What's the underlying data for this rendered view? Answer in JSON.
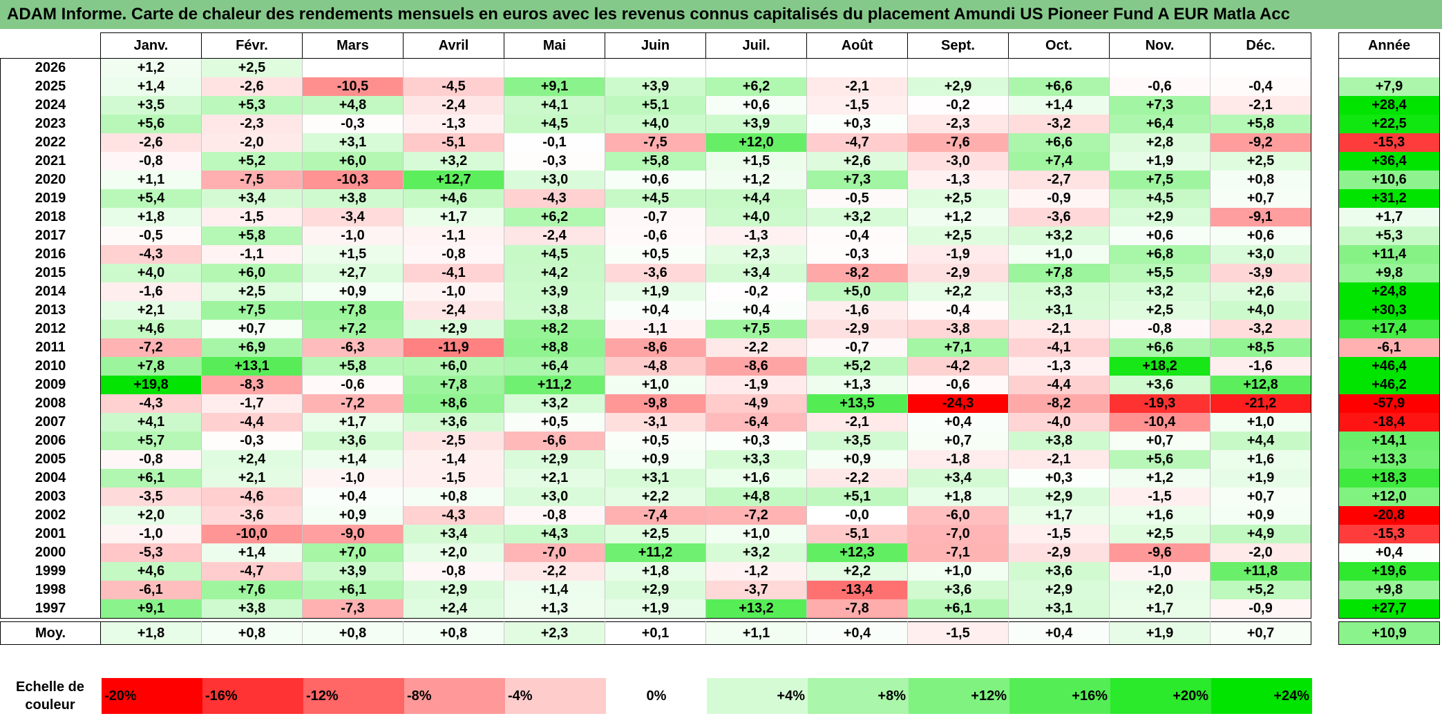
{
  "title": "ADAM Informe. Carte de chaleur des rendements mensuels en euros avec les revenus connus capitalisés du placement Amundi US Pioneer Fund A EUR Matla Acc",
  "chart_data": {
    "type": "heatmap",
    "months": [
      "Janv.",
      "Févr.",
      "Mars",
      "Avril",
      "Mai",
      "Juin",
      "Juil.",
      "Août",
      "Sept.",
      "Oct.",
      "Nov.",
      "Déc."
    ],
    "year_header": "Année",
    "rows": [
      {
        "year": "2026",
        "values": [
          "+1,2",
          "+2,5",
          "",
          "",
          "",
          "",
          "",
          "",
          "",
          "",
          "",
          ""
        ],
        "annual": ""
      },
      {
        "year": "2025",
        "values": [
          "+1,4",
          "-2,6",
          "-10,5",
          "-4,5",
          "+9,1",
          "+3,9",
          "+6,2",
          "-2,1",
          "+2,9",
          "+6,6",
          "-0,6",
          "-0,4"
        ],
        "annual": "+7,9"
      },
      {
        "year": "2024",
        "values": [
          "+3,5",
          "+5,3",
          "+4,8",
          "-2,4",
          "+4,1",
          "+5,1",
          "+0,6",
          "-1,5",
          "-0,2",
          "+1,4",
          "+7,3",
          "-2,1"
        ],
        "annual": "+28,4"
      },
      {
        "year": "2023",
        "values": [
          "+5,6",
          "-2,3",
          "-0,3",
          "-1,3",
          "+4,5",
          "+4,0",
          "+3,9",
          "+0,3",
          "-2,3",
          "-3,2",
          "+6,4",
          "+5,8"
        ],
        "annual": "+22,5"
      },
      {
        "year": "2022",
        "values": [
          "-2,6",
          "-2,0",
          "+3,1",
          "-5,1",
          "-0,1",
          "-7,5",
          "+12,0",
          "-4,7",
          "-7,6",
          "+6,6",
          "+2,8",
          "-9,2"
        ],
        "annual": "-15,3"
      },
      {
        "year": "2021",
        "values": [
          "-0,8",
          "+5,2",
          "+6,0",
          "+3,2",
          "-0,3",
          "+5,8",
          "+1,5",
          "+2,6",
          "-3,0",
          "+7,4",
          "+1,9",
          "+2,5"
        ],
        "annual": "+36,4"
      },
      {
        "year": "2020",
        "values": [
          "+1,1",
          "-7,5",
          "-10,3",
          "+12,7",
          "+3,0",
          "+0,6",
          "+1,2",
          "+7,3",
          "-1,3",
          "-2,7",
          "+7,5",
          "+0,8"
        ],
        "annual": "+10,6"
      },
      {
        "year": "2019",
        "values": [
          "+5,4",
          "+3,4",
          "+3,8",
          "+4,6",
          "-4,3",
          "+4,5",
          "+4,4",
          "-0,5",
          "+2,5",
          "-0,9",
          "+4,5",
          "+0,7"
        ],
        "annual": "+31,2"
      },
      {
        "year": "2018",
        "values": [
          "+1,8",
          "-1,5",
          "-3,4",
          "+1,7",
          "+6,2",
          "-0,7",
          "+4,0",
          "+3,2",
          "+1,2",
          "-3,6",
          "+2,9",
          "-9,1"
        ],
        "annual": "+1,7"
      },
      {
        "year": "2017",
        "values": [
          "-0,5",
          "+5,8",
          "-1,0",
          "-1,1",
          "-2,4",
          "-0,6",
          "-1,3",
          "-0,4",
          "+2,5",
          "+3,2",
          "+0,6",
          "+0,6"
        ],
        "annual": "+5,3"
      },
      {
        "year": "2016",
        "values": [
          "-4,3",
          "-1,1",
          "+1,5",
          "-0,8",
          "+4,5",
          "+0,5",
          "+2,3",
          "-0,3",
          "-1,9",
          "+1,0",
          "+6,8",
          "+3,0"
        ],
        "annual": "+11,4"
      },
      {
        "year": "2015",
        "values": [
          "+4,0",
          "+6,0",
          "+2,7",
          "-4,1",
          "+4,2",
          "-3,6",
          "+3,4",
          "-8,2",
          "-2,9",
          "+7,8",
          "+5,5",
          "-3,9"
        ],
        "annual": "+9,8"
      },
      {
        "year": "2014",
        "values": [
          "-1,6",
          "+2,5",
          "+0,9",
          "-1,0",
          "+3,9",
          "+1,9",
          "-0,2",
          "+5,0",
          "+2,2",
          "+3,3",
          "+3,2",
          "+2,6"
        ],
        "annual": "+24,8"
      },
      {
        "year": "2013",
        "values": [
          "+2,1",
          "+7,5",
          "+7,8",
          "-2,4",
          "+3,8",
          "+0,4",
          "+0,4",
          "-1,6",
          "-0,4",
          "+3,1",
          "+2,5",
          "+4,0"
        ],
        "annual": "+30,3"
      },
      {
        "year": "2012",
        "values": [
          "+4,6",
          "+0,7",
          "+7,2",
          "+2,9",
          "+8,2",
          "-1,1",
          "+7,5",
          "-2,9",
          "-3,8",
          "-2,1",
          "-0,8",
          "-3,2"
        ],
        "annual": "+17,4"
      },
      {
        "year": "2011",
        "values": [
          "-7,2",
          "+6,9",
          "-6,3",
          "-11,9",
          "+8,8",
          "-8,6",
          "-2,2",
          "-0,7",
          "+7,1",
          "-4,1",
          "+6,6",
          "+8,5"
        ],
        "annual": "-6,1"
      },
      {
        "year": "2010",
        "values": [
          "+7,8",
          "+13,1",
          "+5,8",
          "+6,0",
          "+6,4",
          "-4,8",
          "-8,6",
          "+5,2",
          "-4,2",
          "-1,3",
          "+18,2",
          "-1,6"
        ],
        "annual": "+46,4"
      },
      {
        "year": "2009",
        "values": [
          "+19,8",
          "-8,3",
          "-0,6",
          "+7,8",
          "+11,2",
          "+1,0",
          "-1,9",
          "+1,3",
          "-0,6",
          "-4,4",
          "+3,6",
          "+12,8"
        ],
        "annual": "+46,2"
      },
      {
        "year": "2008",
        "values": [
          "-4,3",
          "-1,7",
          "-7,2",
          "+8,6",
          "+3,2",
          "-9,8",
          "-4,9",
          "+13,5",
          "-24,3",
          "-8,2",
          "-19,3",
          "-21,2"
        ],
        "annual": "-57,9"
      },
      {
        "year": "2007",
        "values": [
          "+4,1",
          "-4,4",
          "+1,7",
          "+3,6",
          "+0,5",
          "-3,1",
          "-6,4",
          "-2,1",
          "+0,4",
          "-4,0",
          "-10,4",
          "+1,0"
        ],
        "annual": "-18,4"
      },
      {
        "year": "2006",
        "values": [
          "+5,7",
          "-0,3",
          "+3,6",
          "-2,5",
          "-6,6",
          "+0,5",
          "+0,3",
          "+3,5",
          "+0,7",
          "+3,8",
          "+0,7",
          "+4,4"
        ],
        "annual": "+14,1"
      },
      {
        "year": "2005",
        "values": [
          "-0,8",
          "+2,4",
          "+1,4",
          "-1,4",
          "+2,9",
          "+0,9",
          "+3,3",
          "+0,9",
          "-1,8",
          "-2,1",
          "+5,6",
          "+1,6"
        ],
        "annual": "+13,3"
      },
      {
        "year": "2004",
        "values": [
          "+6,1",
          "+2,1",
          "-1,0",
          "-1,5",
          "+2,1",
          "+3,1",
          "+1,6",
          "-2,2",
          "+3,4",
          "+0,3",
          "+1,2",
          "+1,9"
        ],
        "annual": "+18,3"
      },
      {
        "year": "2003",
        "values": [
          "-3,5",
          "-4,6",
          "+0,4",
          "+0,8",
          "+3,0",
          "+2,2",
          "+4,8",
          "+5,1",
          "+1,8",
          "+2,9",
          "-1,5",
          "+0,7"
        ],
        "annual": "+12,0"
      },
      {
        "year": "2002",
        "values": [
          "+2,0",
          "-3,6",
          "+0,9",
          "-4,3",
          "-0,8",
          "-7,4",
          "-7,2",
          "-0,0",
          "-6,0",
          "+1,7",
          "+1,6",
          "+0,9"
        ],
        "annual": "-20,8"
      },
      {
        "year": "2001",
        "values": [
          "-1,0",
          "-10,0",
          "-9,0",
          "+3,4",
          "+4,3",
          "+2,5",
          "+1,0",
          "-5,1",
          "-7,0",
          "-1,5",
          "+2,5",
          "+4,9"
        ],
        "annual": "-15,3"
      },
      {
        "year": "2000",
        "values": [
          "-5,3",
          "+1,4",
          "+7,0",
          "+2,0",
          "-7,0",
          "+11,2",
          "+3,2",
          "+12,3",
          "-7,1",
          "-2,9",
          "-9,6",
          "-2,0"
        ],
        "annual": "+0,4"
      },
      {
        "year": "1999",
        "values": [
          "+4,6",
          "-4,7",
          "+3,9",
          "-0,8",
          "-2,2",
          "+1,8",
          "-1,2",
          "+2,2",
          "+1,0",
          "+3,6",
          "-1,0",
          "+11,8"
        ],
        "annual": "+19,6"
      },
      {
        "year": "1998",
        "values": [
          "-6,1",
          "+7,6",
          "+6,1",
          "+2,9",
          "+1,4",
          "+2,9",
          "-3,7",
          "-13,4",
          "+3,6",
          "+2,9",
          "+2,0",
          "+5,2"
        ],
        "annual": "+9,8"
      },
      {
        "year": "1997",
        "values": [
          "+9,1",
          "+3,8",
          "-7,3",
          "+2,4",
          "+1,3",
          "+1,9",
          "+13,2",
          "-7,8",
          "+6,1",
          "+3,1",
          "+1,7",
          "-0,9"
        ],
        "annual": "+27,7"
      }
    ],
    "average": {
      "label": "Moy.",
      "values": [
        "+1,8",
        "+0,8",
        "+0,8",
        "+0,8",
        "+2,3",
        "+0,1",
        "+1,1",
        "+0,4",
        "-1,5",
        "+0,4",
        "+1,9",
        "+0,7"
      ],
      "annual": "+10,9"
    },
    "scale": {
      "label": "Echelle de couleur",
      "stops": [
        "-20%",
        "-16%",
        "-12%",
        "-8%",
        "-4%",
        "0%",
        "+4%",
        "+8%",
        "+12%",
        "+16%",
        "+20%",
        "+24%"
      ],
      "stop_values": [
        -20,
        -16,
        -12,
        -8,
        -4,
        0,
        4,
        8,
        12,
        16,
        20,
        24
      ]
    },
    "colors": {
      "negative": "#ff0000",
      "neutral": "#ffffff",
      "positive": "#00e400",
      "title_bg": "#84c98a"
    }
  }
}
